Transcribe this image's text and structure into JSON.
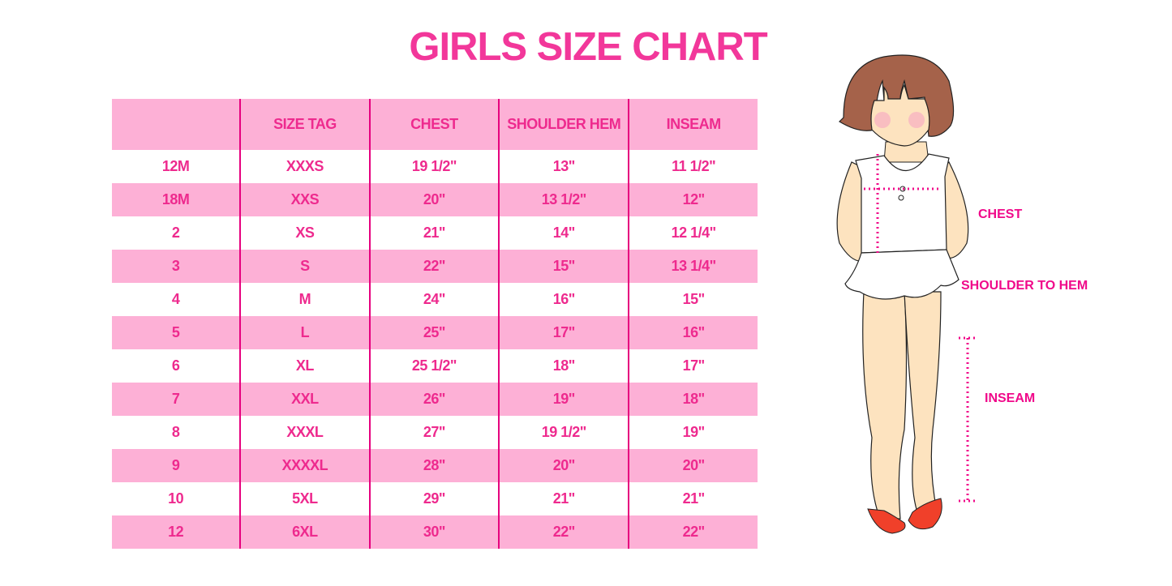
{
  "title": "GIRLS SIZE CHART",
  "colors": {
    "accent": "#f2379a",
    "row_pink": "#fdb0d6",
    "divider": "#e6007e"
  },
  "table": {
    "headers": [
      "",
      "SIZE TAG",
      "CHEST",
      "SHOULDER HEM",
      "INSEAM"
    ],
    "rows": [
      [
        "12M",
        "XXXS",
        "19 1/2\"",
        "13\"",
        "11 1/2\""
      ],
      [
        "18M",
        "XXS",
        "20\"",
        "13 1/2\"",
        "12\""
      ],
      [
        "2",
        "XS",
        "21\"",
        "14\"",
        "12 1/4\""
      ],
      [
        "3",
        "S",
        "22\"",
        "15\"",
        "13 1/4\""
      ],
      [
        "4",
        "M",
        "24\"",
        "16\"",
        "15\""
      ],
      [
        "5",
        "L",
        "25\"",
        "17\"",
        "16\""
      ],
      [
        "6",
        "XL",
        "25 1/2\"",
        "18\"",
        "17\""
      ],
      [
        "7",
        "XXL",
        "26\"",
        "19\"",
        "18\""
      ],
      [
        "8",
        "XXXL",
        "27\"",
        "19 1/2\"",
        "19\""
      ],
      [
        "9",
        "XXXXL",
        "28\"",
        "20\"",
        "20\""
      ],
      [
        "10",
        "5XL",
        "29\"",
        "21\"",
        "21\""
      ],
      [
        "12",
        "6XL",
        "30\"",
        "22\"",
        "22\""
      ]
    ]
  },
  "figure": {
    "labels": {
      "chest": "CHEST",
      "shoulder": "SHOULDER TO HEM",
      "inseam": "INSEAM"
    }
  }
}
